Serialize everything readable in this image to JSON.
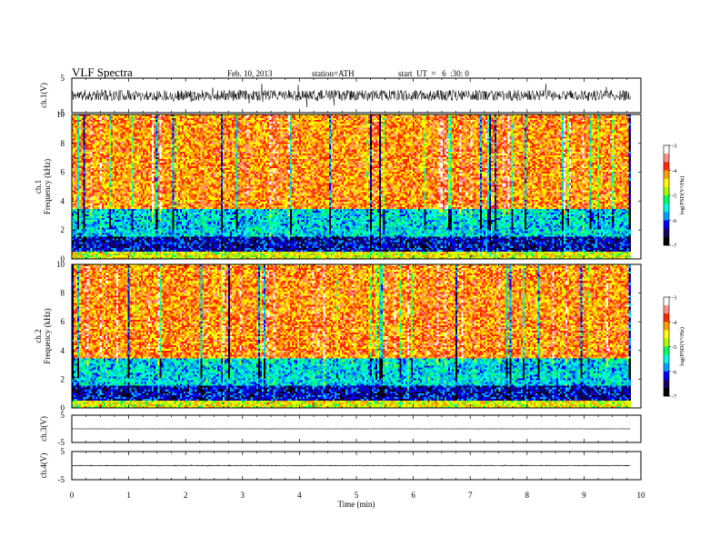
{
  "header": {
    "title": "VLF  Spectra",
    "date": "Feb. 10, 2013",
    "station": "station=ATH",
    "start": "start  UT  =   6  :30: 0"
  },
  "chart_data": [
    {
      "type": "line",
      "name": "ch1-waveform",
      "ylabel": "ch.1(V)",
      "ylim": [
        -5,
        5
      ],
      "yticks": [
        "5",
        "-5"
      ],
      "xlim": [
        0,
        10
      ],
      "data_end": 9.82,
      "amplitude": 3.5
    },
    {
      "type": "heatmap",
      "name": "ch1-spectrogram",
      "ylabel": "ch.1\nFrequency  (kHz)",
      "ylim": [
        0,
        10
      ],
      "yticks": [
        "0",
        "2",
        "4",
        "6",
        "8",
        "10"
      ],
      "xlim": [
        0,
        10
      ],
      "data_end": 9.82,
      "colorbar": {
        "label": "log(PSD(V²/Hz)",
        "range": [
          -7,
          -3
        ],
        "ticks": [
          "-3",
          "-4",
          "-5",
          "-6",
          "-7"
        ]
      }
    },
    {
      "type": "heatmap",
      "name": "ch2-spectrogram",
      "ylabel": "ch.2\nFrequency  (kHz)",
      "ylim": [
        0,
        10
      ],
      "yticks": [
        "0",
        "2",
        "4",
        "6",
        "8",
        "10"
      ],
      "xlim": [
        0,
        10
      ],
      "data_end": 9.82,
      "colorbar": {
        "label": "log(PSD(V²/Hz)",
        "range": [
          -7,
          -3
        ],
        "ticks": [
          "-3",
          "-4",
          "-5",
          "-6",
          "-7"
        ]
      }
    },
    {
      "type": "line",
      "name": "ch3-waveform",
      "ylabel": "ch.3(V)",
      "ylim": [
        -5,
        5
      ],
      "yticks": [
        "5",
        "-5"
      ],
      "xlim": [
        0,
        10
      ],
      "data_end": 9.82,
      "amplitude": 0.1
    },
    {
      "type": "line",
      "name": "ch4-waveform",
      "ylabel": "ch.4(V)",
      "ylim": [
        -5,
        5
      ],
      "yticks": [
        "5",
        "-5"
      ],
      "xlim": [
        0,
        10
      ],
      "data_end": 9.82,
      "amplitude": 0.3,
      "xlabel": "Time  (min)",
      "xticks": [
        "0",
        "1",
        "2",
        "3",
        "4",
        "5",
        "6",
        "7",
        "8",
        "9",
        "10"
      ]
    }
  ],
  "colors": {
    "background": "#ffffff",
    "frame": "#000000",
    "trace": "#000000",
    "colormap": [
      "#000000",
      "#1a0066",
      "#0000ff",
      "#00a0ff",
      "#00ffdd",
      "#00ff66",
      "#a8ff00",
      "#ffff00",
      "#ffa000",
      "#ff2800",
      "#ff9090",
      "#ffffff"
    ]
  }
}
